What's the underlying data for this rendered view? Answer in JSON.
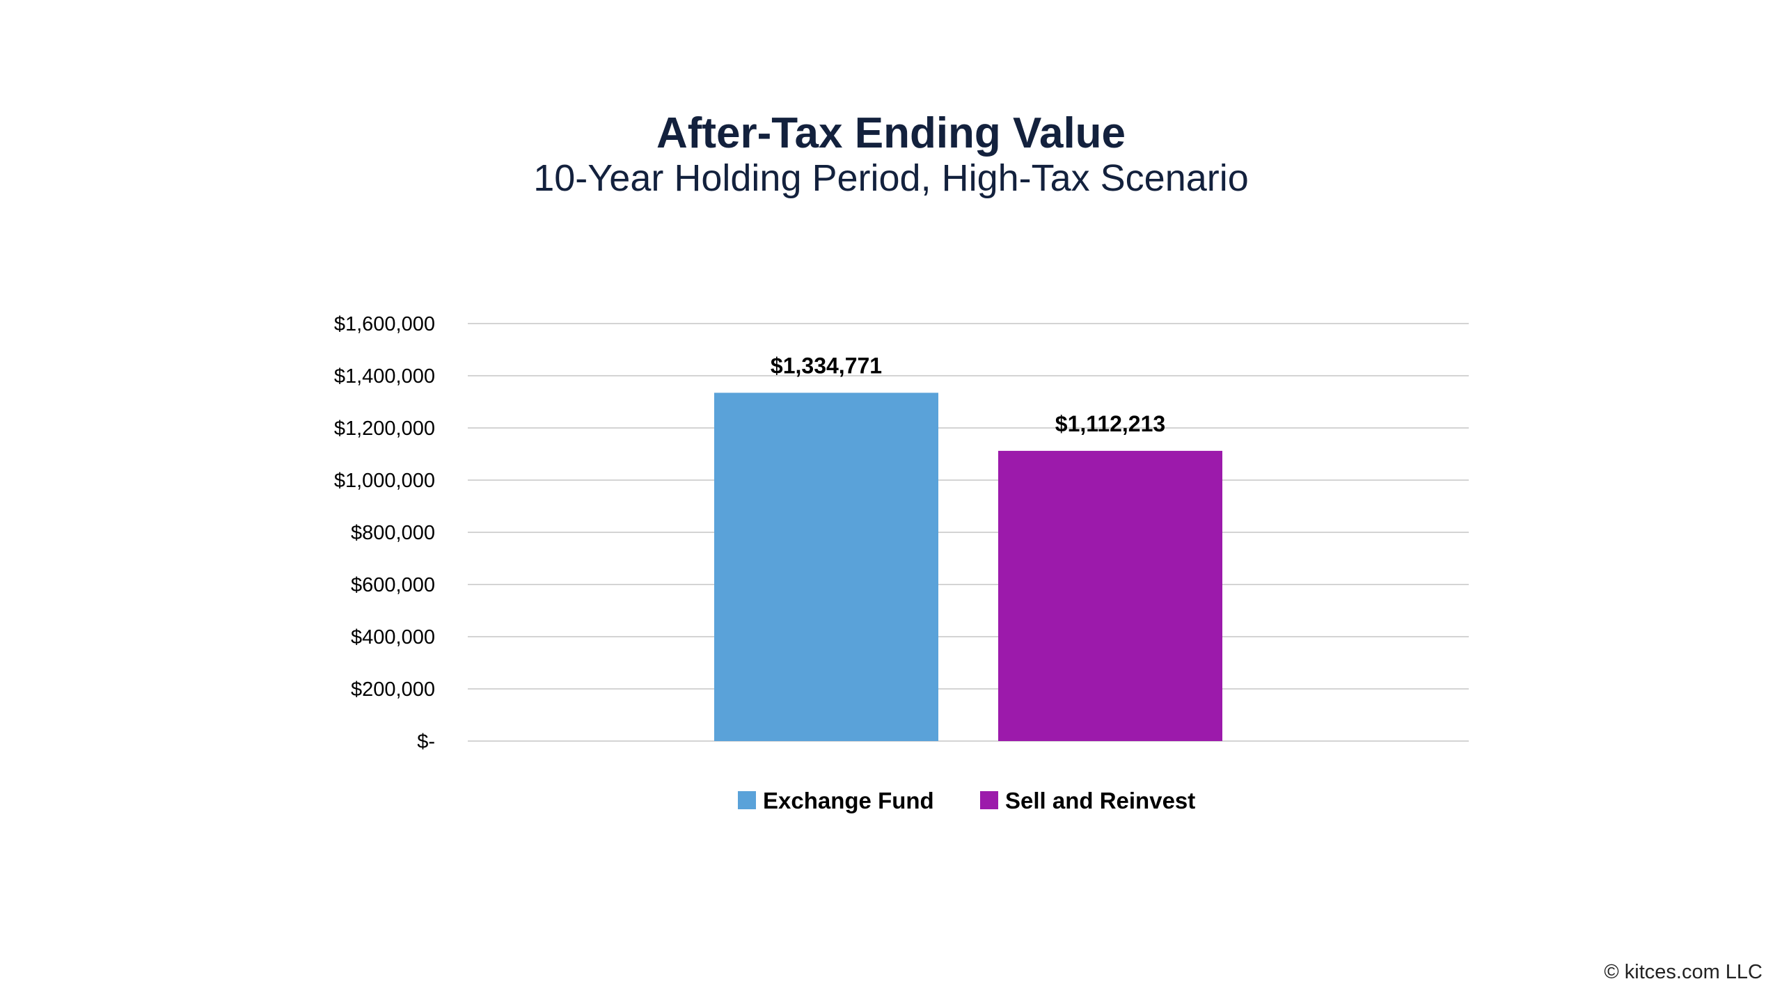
{
  "chart_data": {
    "type": "bar",
    "title": "After-Tax Ending Value",
    "subtitle": "10-Year Holding Period, High-Tax Scenario",
    "categories": [
      "Exchange Fund",
      "Sell and Reinvest"
    ],
    "values": [
      1334771,
      1112213
    ],
    "data_labels": [
      "$1,334,771",
      "$1,112,213"
    ],
    "colors": [
      "#5aa2d9",
      "#9c1aab"
    ],
    "ylim": [
      0,
      1600000
    ],
    "yticks": [
      0,
      200000,
      400000,
      600000,
      800000,
      1000000,
      1200000,
      1400000,
      1600000
    ],
    "ytick_labels": [
      "$-",
      "$200,000",
      "$400,000",
      "$600,000",
      "$800,000",
      "$1,000,000",
      "$1,200,000",
      "$1,400,000",
      "$1,600,000"
    ],
    "xlabel": "",
    "ylabel": "",
    "grid": true,
    "legend": {
      "position": "bottom",
      "entries": [
        {
          "name": "Exchange Fund",
          "color": "#5aa2d9"
        },
        {
          "name": "Sell and Reinvest",
          "color": "#9c1aab"
        }
      ]
    }
  },
  "footer": {
    "copyright": "© kitces.com LLC"
  }
}
